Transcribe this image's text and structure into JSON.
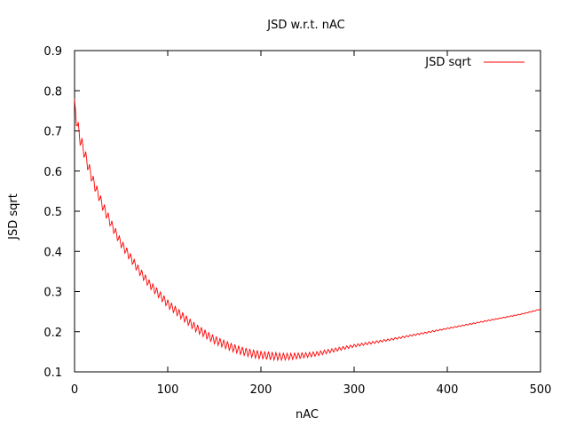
{
  "chart_data": {
    "type": "line",
    "title": "JSD w.r.t. nAC",
    "xlabel": "nAC",
    "ylabel": "JSD sqrt",
    "xlim": [
      0,
      500
    ],
    "ylim": [
      0.1,
      0.9
    ],
    "xticks": [
      "0",
      "100",
      "200",
      "300",
      "400",
      "500"
    ],
    "yticks": [
      "0.1",
      "0.2",
      "0.3",
      "0.4",
      "0.5",
      "0.6",
      "0.7",
      "0.8",
      "0.9"
    ],
    "grid": false,
    "legend": "top-right",
    "series": [
      {
        "name": "JSD sqrt",
        "color": "#ff0000",
        "x": [
          0,
          5,
          10,
          15,
          20,
          25,
          30,
          40,
          50,
          60,
          70,
          80,
          90,
          100,
          110,
          120,
          130,
          140,
          150,
          160,
          170,
          180,
          190,
          200,
          210,
          220,
          230,
          240,
          250,
          260,
          270,
          280,
          290,
          300,
          320,
          340,
          360,
          380,
          400,
          420,
          440,
          460,
          480,
          500
        ],
        "y": [
          0.76,
          0.69,
          0.65,
          0.61,
          0.575,
          0.545,
          0.515,
          0.465,
          0.42,
          0.385,
          0.35,
          0.32,
          0.295,
          0.27,
          0.25,
          0.23,
          0.21,
          0.195,
          0.18,
          0.17,
          0.16,
          0.152,
          0.146,
          0.142,
          0.14,
          0.138,
          0.138,
          0.14,
          0.142,
          0.145,
          0.15,
          0.155,
          0.16,
          0.165,
          0.173,
          0.181,
          0.19,
          0.199,
          0.208,
          0.217,
          0.226,
          0.235,
          0.244,
          0.256
        ],
        "oscillation_amplitude": [
          0.04,
          0.035,
          0.03,
          0.028,
          0.026,
          0.025,
          0.024,
          0.022,
          0.021,
          0.02,
          0.02,
          0.02,
          0.02,
          0.02,
          0.02,
          0.02,
          0.02,
          0.02,
          0.02,
          0.02,
          0.02,
          0.02,
          0.02,
          0.02,
          0.02,
          0.018,
          0.016,
          0.014,
          0.012,
          0.011,
          0.01,
          0.009,
          0.008,
          0.007,
          0.006,
          0.005,
          0.004,
          0.004,
          0.003,
          0.003,
          0.003,
          0.002,
          0.002,
          0.002
        ]
      }
    ]
  }
}
